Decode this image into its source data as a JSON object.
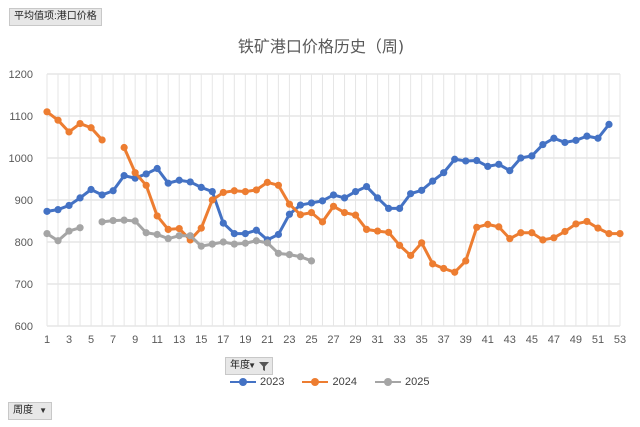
{
  "pivot": {
    "value_field": "平均值项:港口价格",
    "year_field": "年度",
    "week_field": "周度"
  },
  "chart_data": {
    "type": "line",
    "title": "铁矿港口价格历史（周)",
    "xlabel": "",
    "ylabel": "",
    "ylim": [
      600,
      1200
    ],
    "yticks": [
      600,
      700,
      800,
      900,
      1000,
      1100,
      1200
    ],
    "xticks": [
      1,
      3,
      5,
      7,
      9,
      11,
      13,
      15,
      17,
      19,
      21,
      23,
      25,
      27,
      29,
      31,
      33,
      35,
      37,
      39,
      41,
      43,
      45,
      47,
      49,
      51,
      53
    ],
    "xlim": [
      1,
      53
    ],
    "grid": true,
    "legend_position": "bottom",
    "colors": {
      "2023": "#4472c4",
      "2024": "#ed7d31",
      "2025": "#a5a5a5"
    },
    "series": [
      {
        "name": "2023",
        "x": [
          1,
          2,
          3,
          4,
          5,
          6,
          7,
          8,
          9,
          10,
          11,
          12,
          13,
          14,
          15,
          16,
          17,
          18,
          19,
          20,
          21,
          22,
          23,
          24,
          25,
          26,
          27,
          28,
          29,
          30,
          31,
          32,
          33,
          34,
          35,
          36,
          37,
          38,
          39,
          40,
          41,
          42,
          43,
          44,
          45,
          46,
          47,
          48,
          49,
          50,
          51,
          52
        ],
        "values": [
          873,
          877,
          887,
          905,
          925,
          912,
          922,
          958,
          952,
          962,
          975,
          940,
          947,
          943,
          930,
          920,
          845,
          820,
          820,
          828,
          805,
          818,
          866,
          888,
          893,
          898,
          912,
          905,
          920,
          932,
          905,
          880,
          880,
          915,
          923,
          945,
          965,
          997,
          993,
          994,
          980,
          985,
          970,
          1000,
          1005,
          1032,
          1047,
          1037,
          1042,
          1052,
          1047,
          1080
        ]
      },
      {
        "name": "2024",
        "x": [
          1,
          2,
          3,
          4,
          5,
          6,
          null,
          8,
          9,
          10,
          11,
          12,
          13,
          14,
          15,
          16,
          17,
          18,
          19,
          20,
          21,
          22,
          23,
          24,
          25,
          26,
          27,
          28,
          29,
          30,
          31,
          32,
          33,
          34,
          35,
          36,
          37,
          38,
          39,
          40,
          41,
          42,
          43,
          44,
          45,
          46,
          47,
          48,
          49,
          50,
          51,
          52,
          53
        ],
        "values": [
          1110,
          1090,
          1062,
          1082,
          1072,
          1043,
          null,
          1025,
          965,
          935,
          862,
          830,
          832,
          805,
          833,
          900,
          918,
          922,
          920,
          924,
          942,
          935,
          890,
          865,
          870,
          848,
          885,
          870,
          864,
          830,
          826,
          823,
          792,
          768,
          798,
          748,
          737,
          728,
          755,
          835,
          842,
          836,
          808,
          822,
          822,
          805,
          810,
          825,
          843,
          849,
          833,
          820,
          820
        ]
      },
      {
        "name": "2025",
        "x": [
          1,
          2,
          3,
          4,
          null,
          6,
          7,
          8,
          9,
          10,
          11,
          12,
          13,
          14,
          15,
          16,
          17,
          18,
          19,
          20,
          21,
          22,
          23,
          24,
          25
        ],
        "values": [
          820,
          803,
          826,
          834,
          null,
          848,
          851,
          852,
          850,
          822,
          818,
          808,
          815,
          815,
          790,
          795,
          800,
          795,
          797,
          803,
          798,
          773,
          770,
          765,
          755
        ]
      }
    ]
  }
}
